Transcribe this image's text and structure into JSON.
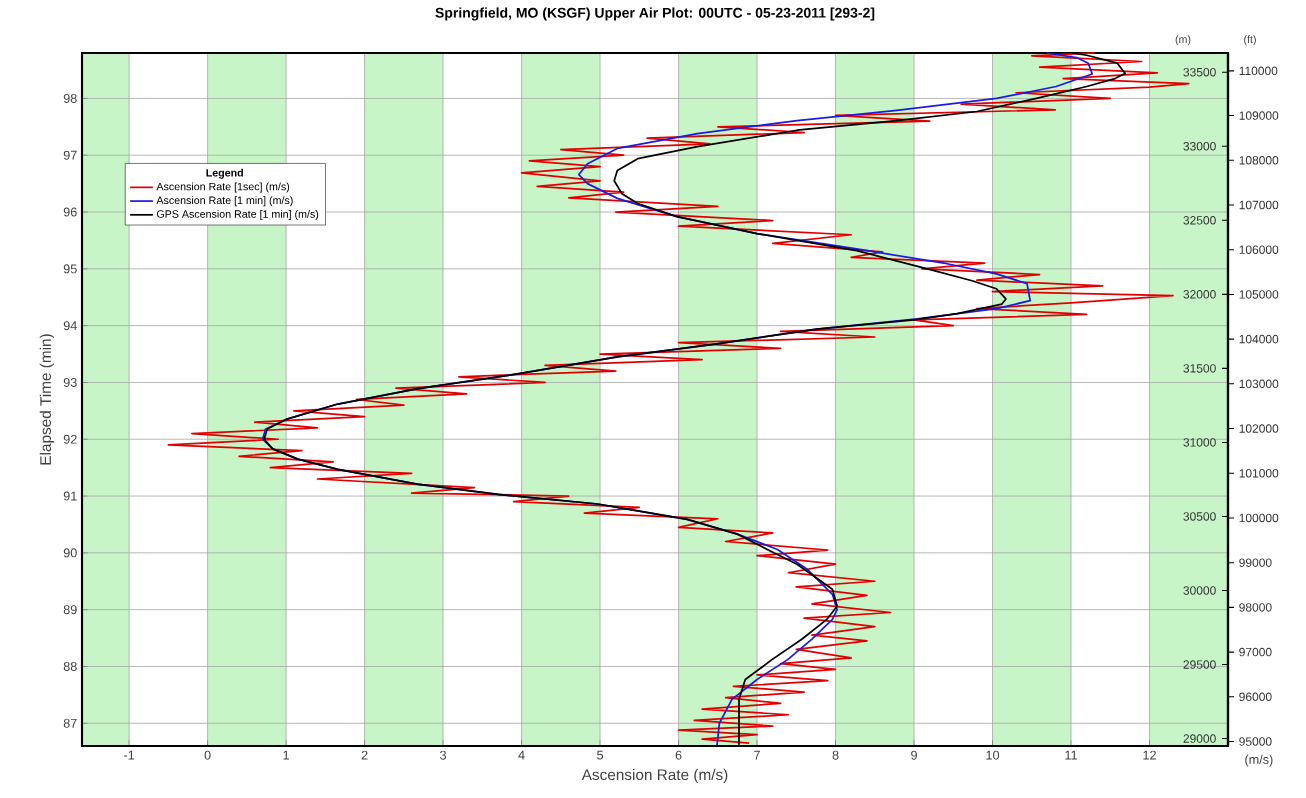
{
  "chart_data": {
    "type": "line",
    "title": "Springfield, MO (KSGF) Upper Air Plot: 00UTC - 05-23-2011 [293-2]",
    "xlabel": "Ascension Rate (m/s)",
    "ylabel": "Elapsed Time (min)",
    "y2label": "(m)",
    "y3label": "(ft)",
    "legend_title": "Legend",
    "annotations": [
      "(m/s)"
    ],
    "xlim": [
      -1.6,
      13
    ],
    "ylim": [
      86.6,
      98.8
    ],
    "xticks": [
      -1,
      0,
      1,
      2,
      3,
      4,
      5,
      6,
      7,
      8,
      9,
      10,
      11,
      12
    ],
    "yticks": [
      87,
      88,
      89,
      90,
      91,
      92,
      93,
      94,
      95,
      96,
      97,
      98
    ],
    "y2lim": [
      28950,
      33630
    ],
    "y2ticks": [
      29000,
      29500,
      30000,
      30500,
      31000,
      31500,
      32000,
      32500,
      33000,
      33500
    ],
    "y3lim": [
      94900,
      110400
    ],
    "y3ticks": [
      95000,
      96000,
      97000,
      98000,
      99000,
      100000,
      101000,
      102000,
      103000,
      104000,
      105000,
      106000,
      107000,
      108000,
      109000,
      110000
    ],
    "grid": true,
    "legend": "top left",
    "marker": "none",
    "line_style": "solid",
    "bands": [
      {
        "axis": "x",
        "from": -1.6,
        "to": -1,
        "color": "#c8f5c8"
      },
      {
        "axis": "x",
        "from": 0,
        "to": 1,
        "color": "#c8f5c8"
      },
      {
        "axis": "x",
        "from": 2,
        "to": 3,
        "color": "#c8f5c8"
      },
      {
        "axis": "x",
        "from": 4,
        "to": 5,
        "color": "#c8f5c8"
      },
      {
        "axis": "x",
        "from": 6,
        "to": 7,
        "color": "#c8f5c8"
      },
      {
        "axis": "x",
        "from": 8,
        "to": 9,
        "color": "#c8f5c8"
      },
      {
        "axis": "x",
        "from": 10,
        "to": 11,
        "color": "#c8f5c8"
      },
      {
        "axis": "x",
        "from": 12,
        "to": 13,
        "color": "#c8f5c8"
      }
    ],
    "series": [
      {
        "name": "Ascension Rate [1sec] (m/s)",
        "color": "#e00000",
        "x": [
          6.9,
          6.3,
          7.0,
          6.0,
          7.2,
          6.2,
          7.4,
          6.3,
          7.3,
          6.6,
          7.6,
          6.7,
          7.9,
          7.0,
          8.0,
          7.3,
          8.2,
          7.5,
          8.4,
          7.7,
          8.5,
          7.6,
          8.7,
          7.7,
          8.4,
          7.5,
          8.5,
          7.4,
          8.0,
          7.0,
          7.9,
          6.6,
          7.2,
          6.0,
          6.5,
          4.8,
          5.5,
          3.9,
          4.6,
          2.6,
          3.4,
          1.4,
          2.6,
          0.8,
          1.6,
          0.4,
          1.2,
          -0.5,
          0.9,
          -0.2,
          1.4,
          0.6,
          2.0,
          1.1,
          2.5,
          1.9,
          3.3,
          2.4,
          4.3,
          3.2,
          5.2,
          4.3,
          6.3,
          5.0,
          7.3,
          6.0,
          8.5,
          7.3,
          9.5,
          9.0,
          11.2,
          9.8,
          11.0,
          12.3,
          10.0,
          11.4,
          9.8,
          10.6,
          9.1,
          9.9,
          8.2,
          8.6,
          7.2,
          8.2,
          6.0,
          7.2,
          5.2,
          6.5,
          4.6,
          5.3,
          4.2,
          5.0,
          4.0,
          5.0,
          4.1,
          5.3,
          4.5,
          6.4,
          5.6,
          7.6,
          6.5,
          9.2,
          8.0,
          10.8,
          9.6,
          11.5,
          10.3,
          12.0,
          12.5,
          10.9,
          12.1,
          10.6,
          11.9,
          10.5,
          11.3
        ],
        "values": [
          86.65,
          86.72,
          86.8,
          86.88,
          86.95,
          87.05,
          87.15,
          87.25,
          87.35,
          87.45,
          87.55,
          87.65,
          87.75,
          87.85,
          87.95,
          88.05,
          88.15,
          88.3,
          88.45,
          88.55,
          88.7,
          88.85,
          88.95,
          89.1,
          89.25,
          89.4,
          89.5,
          89.65,
          89.8,
          89.95,
          90.05,
          90.2,
          90.35,
          90.45,
          90.6,
          90.7,
          90.8,
          90.9,
          91.0,
          91.05,
          91.15,
          91.3,
          91.4,
          91.5,
          91.6,
          91.7,
          91.8,
          91.9,
          92.0,
          92.1,
          92.2,
          92.3,
          92.4,
          92.5,
          92.6,
          92.7,
          92.8,
          92.9,
          93.0,
          93.1,
          93.2,
          93.3,
          93.4,
          93.5,
          93.6,
          93.7,
          93.8,
          93.9,
          94.0,
          94.1,
          94.2,
          94.3,
          94.4,
          94.53,
          94.6,
          94.7,
          94.8,
          94.9,
          95.0,
          95.1,
          95.2,
          95.3,
          95.45,
          95.6,
          95.75,
          95.85,
          96.0,
          96.1,
          96.25,
          96.35,
          96.45,
          96.55,
          96.69,
          96.8,
          96.9,
          97.0,
          97.1,
          97.2,
          97.3,
          97.4,
          97.5,
          97.6,
          97.7,
          97.8,
          97.9,
          98.0,
          98.1,
          98.2,
          98.26,
          98.35,
          98.45,
          98.55,
          98.65,
          98.75,
          98.8
        ]
      },
      {
        "name": "Ascension Rate [1 min] (m/s)",
        "color": "#1c1ce0",
        "x": [
          6.49,
          6.52,
          6.68,
          7.0,
          7.39,
          7.7,
          7.96,
          8.02,
          7.96,
          7.64,
          7.26,
          6.75,
          6.11,
          4.97,
          3.7,
          2.67,
          1.66,
          1.15,
          0.83,
          0.7,
          0.74,
          1.02,
          1.66,
          2.68,
          3.95,
          5.22,
          6.49,
          7.76,
          9.04,
          10.05,
          10.48,
          10.44,
          10.05,
          9.42,
          8.27,
          7.0,
          5.98,
          5.22,
          4.84,
          4.73,
          4.84,
          5.22,
          6.24,
          7.51,
          8.78,
          10.05,
          10.81,
          11.27,
          11.22,
          11.07,
          10.69
        ],
        "values": [
          86.61,
          87.0,
          87.42,
          87.77,
          88.12,
          88.48,
          88.83,
          89.0,
          89.27,
          89.71,
          90.06,
          90.33,
          90.59,
          90.86,
          91.03,
          91.21,
          91.47,
          91.65,
          91.83,
          92.0,
          92.18,
          92.36,
          92.62,
          92.89,
          93.15,
          93.45,
          93.68,
          93.94,
          94.12,
          94.3,
          94.44,
          94.74,
          94.91,
          95.09,
          95.35,
          95.62,
          95.92,
          96.24,
          96.5,
          96.66,
          96.85,
          97.12,
          97.38,
          97.61,
          97.79,
          98.0,
          98.21,
          98.43,
          98.62,
          98.72,
          98.8
        ]
      },
      {
        "name": "GPS Ascension Rate [1 min] (m/s)",
        "color": "#000000",
        "x": [
          6.77,
          6.77,
          6.85,
          7.19,
          7.57,
          7.89,
          8.02,
          7.96,
          7.51,
          7.13,
          6.75,
          6.11,
          4.97,
          3.7,
          2.67,
          1.66,
          1.15,
          0.83,
          0.72,
          0.76,
          1.02,
          1.66,
          2.68,
          3.95,
          5.22,
          6.49,
          7.76,
          9.0,
          9.55,
          10.12,
          10.17,
          10.05,
          9.74,
          9.17,
          8.27,
          7.0,
          5.98,
          5.48,
          5.28,
          5.18,
          5.22,
          5.48,
          6.24,
          7.51,
          8.78,
          9.8,
          10.56,
          11.2,
          11.56,
          11.69,
          11.59,
          11.2,
          11.01
        ],
        "values": [
          86.62,
          87.42,
          87.77,
          88.12,
          88.48,
          88.83,
          89.06,
          89.36,
          89.8,
          90.06,
          90.33,
          90.59,
          90.86,
          91.03,
          91.21,
          91.47,
          91.65,
          91.83,
          92.0,
          92.18,
          92.36,
          92.62,
          92.89,
          93.15,
          93.45,
          93.68,
          93.94,
          94.1,
          94.21,
          94.38,
          94.47,
          94.65,
          94.79,
          95.0,
          95.32,
          95.62,
          95.92,
          96.15,
          96.32,
          96.55,
          96.73,
          96.94,
          97.15,
          97.44,
          97.61,
          97.77,
          98.0,
          98.21,
          98.35,
          98.44,
          98.62,
          98.76,
          98.8
        ]
      }
    ]
  }
}
